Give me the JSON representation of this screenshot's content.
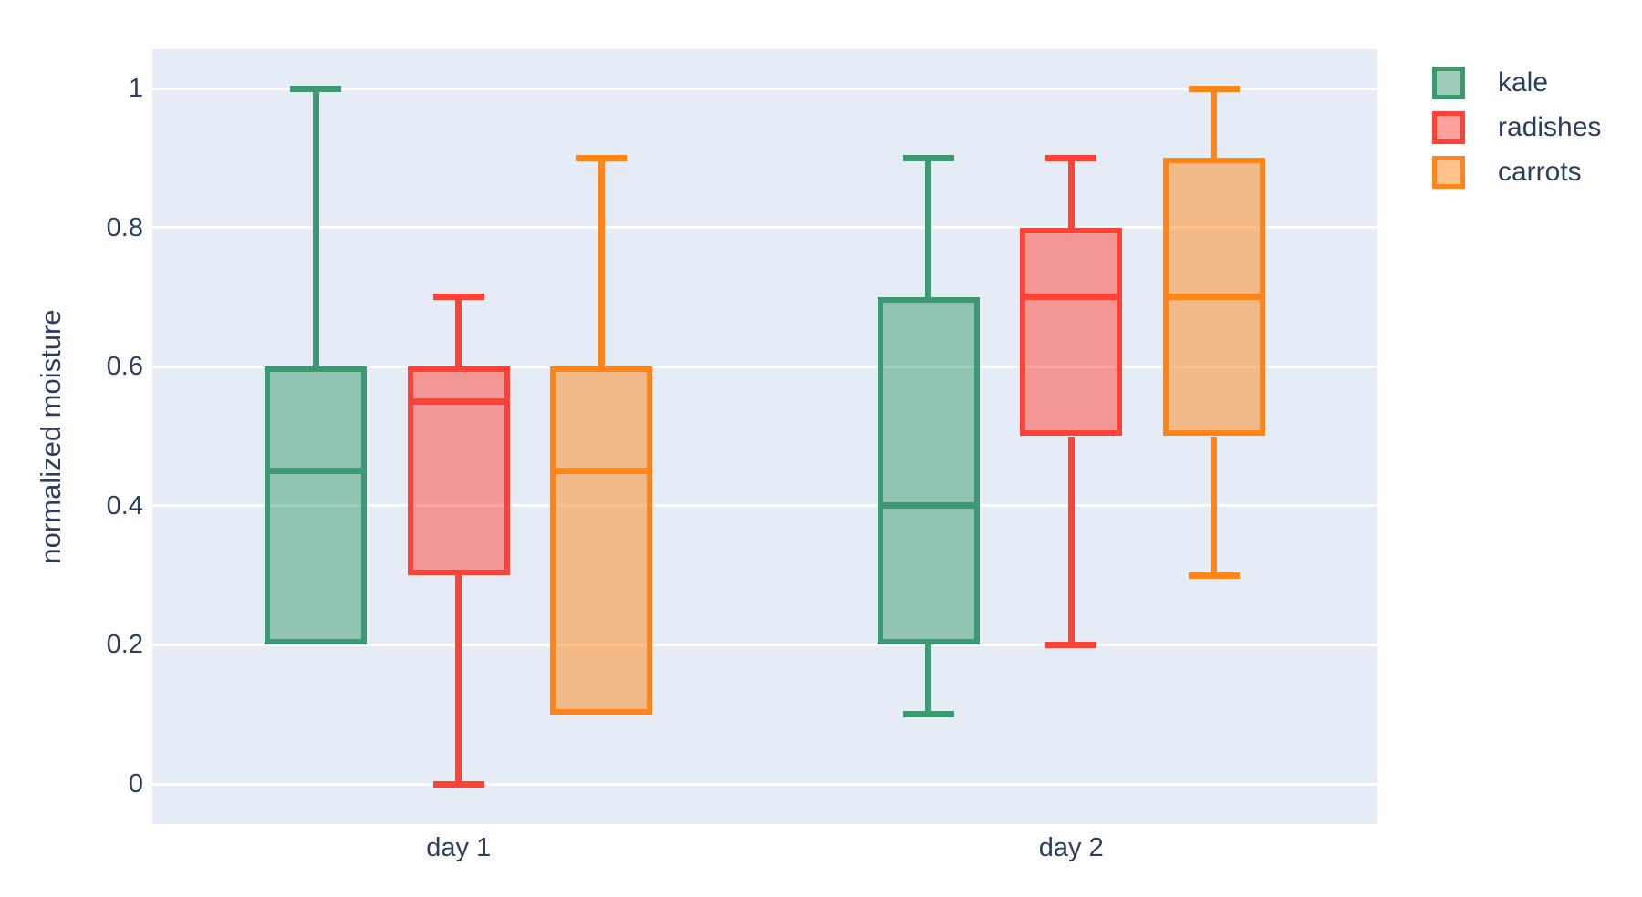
{
  "figure": {
    "background_color": "#ffffff",
    "plot_background_color": "#E5ECF6",
    "grid_color": "#ffffff",
    "text_color": "#2a3f5f",
    "fill_opacity": 0.5
  },
  "chart_data": {
    "type": "box",
    "boxmode": "group",
    "title": "",
    "xlabel": "",
    "ylabel": "normalized moisture",
    "categories": [
      "day 1",
      "day 2"
    ],
    "y_ticks": [
      0,
      0.2,
      0.4,
      0.6,
      0.8,
      1
    ],
    "y_tick_labels": [
      "0",
      "0.2",
      "0.4",
      "0.6",
      "0.8",
      "1"
    ],
    "ylim": [
      0,
      1
    ],
    "grid": true,
    "legend_position": "outside-top-right",
    "series": [
      {
        "name": "kale",
        "color": "#3D9970",
        "boxes": [
          {
            "category": "day 1",
            "low": 0.2,
            "q1": 0.2,
            "median": 0.45,
            "q3": 0.6,
            "high": 1.0
          },
          {
            "category": "day 2",
            "low": 0.1,
            "q1": 0.2,
            "median": 0.4,
            "q3": 0.7,
            "high": 0.9
          }
        ]
      },
      {
        "name": "radishes",
        "color": "#FF4136",
        "boxes": [
          {
            "category": "day 1",
            "low": 0.0,
            "q1": 0.3,
            "median": 0.55,
            "q3": 0.6,
            "high": 0.7
          },
          {
            "category": "day 2",
            "low": 0.2,
            "q1": 0.5,
            "median": 0.7,
            "q3": 0.8,
            "high": 0.9
          }
        ]
      },
      {
        "name": "carrots",
        "color": "#FF851B",
        "boxes": [
          {
            "category": "day 1",
            "low": 0.1,
            "q1": 0.1,
            "median": 0.45,
            "q3": 0.6,
            "high": 0.9
          },
          {
            "category": "day 2",
            "low": 0.3,
            "q1": 0.5,
            "median": 0.7,
            "q3": 0.9,
            "high": 1.0
          }
        ]
      }
    ]
  }
}
